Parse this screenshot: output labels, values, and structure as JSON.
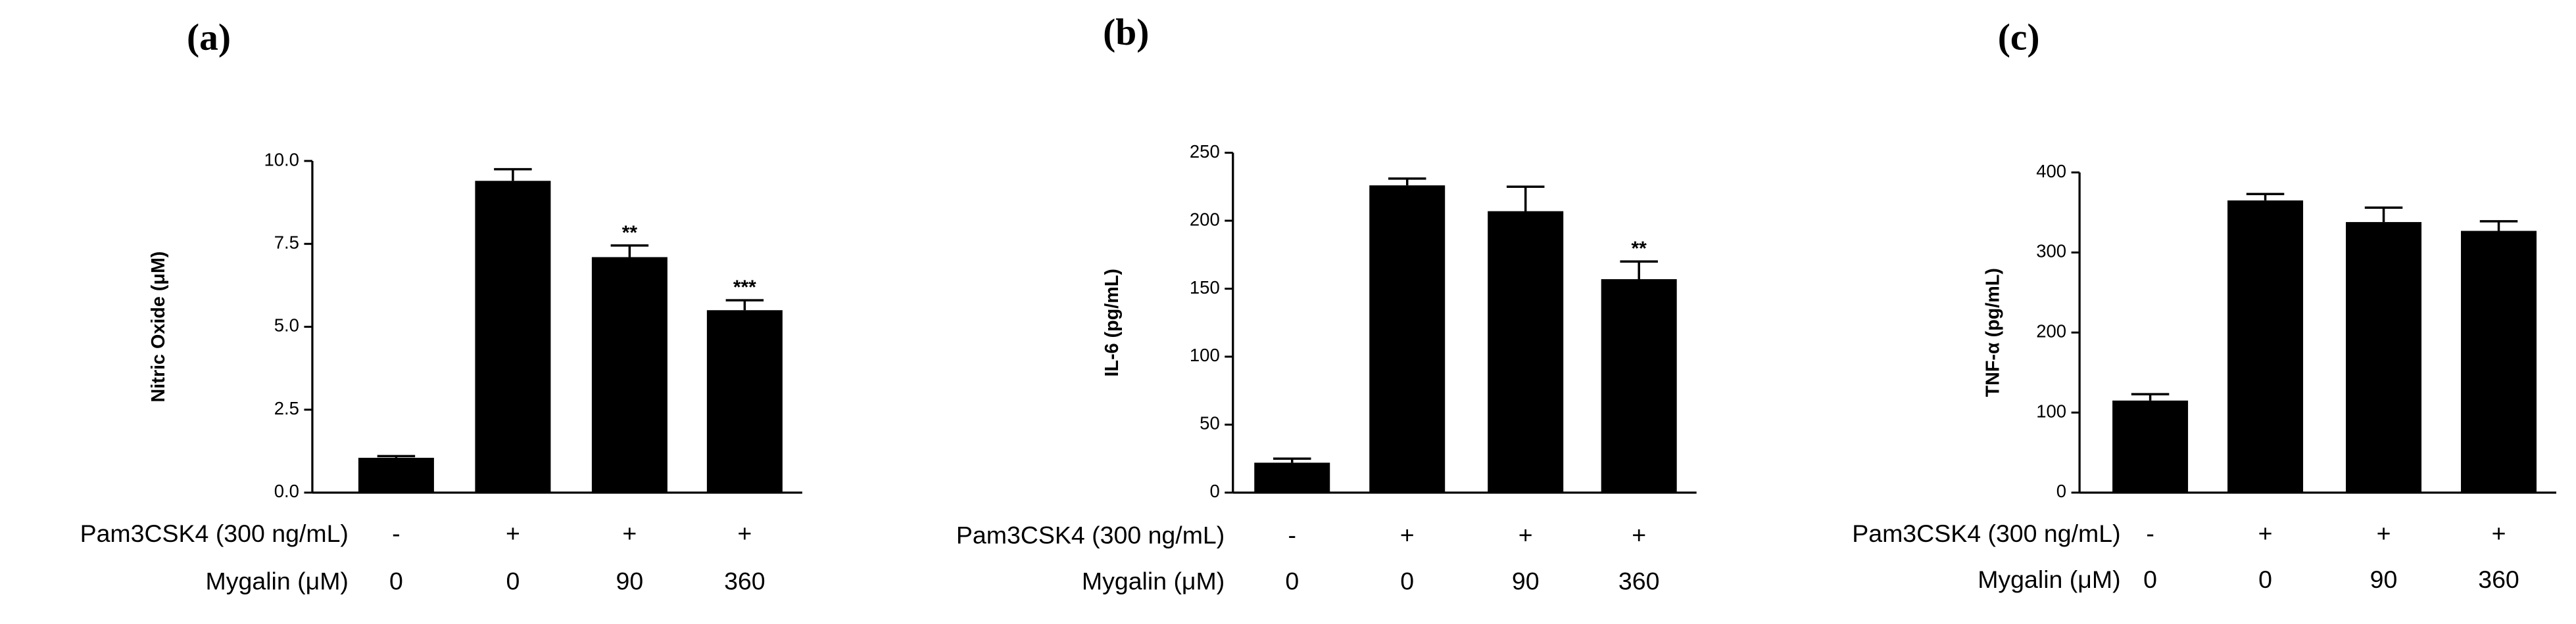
{
  "chart_data": [
    {
      "type": "bar",
      "panel_label": "(a)",
      "y_label": "Nitric Oxide (μM)",
      "color": "#000000",
      "values": [
        1.05,
        9.4,
        7.1,
        5.5
      ],
      "errors": [
        0.05,
        0.35,
        0.35,
        0.3
      ],
      "annotations": [
        null,
        null,
        "**",
        "***"
      ],
      "conditions": [
        {
          "name": "Pam3CSK4 (300 ng/mL)",
          "labels": [
            "-",
            "+",
            "+",
            "+"
          ]
        },
        {
          "name": "Mygalin (μM)",
          "labels": [
            "0",
            "0",
            "90",
            "360"
          ]
        }
      ],
      "ylim": [
        0,
        10
      ],
      "yticks": [
        {
          "value": 0,
          "label": "0.0"
        },
        {
          "value": 2.5,
          "label": "2.5"
        },
        {
          "value": 5,
          "label": "5.0"
        },
        {
          "value": 7.5,
          "label": "7.5"
        },
        {
          "value": 10,
          "label": "10.0"
        }
      ]
    },
    {
      "type": "bar",
      "panel_label": "(b)",
      "y_label": "IL-6 (pg/mL)",
      "color": "#000000",
      "values": [
        22,
        226,
        207,
        157
      ],
      "errors": [
        3,
        5,
        18,
        13
      ],
      "annotations": [
        null,
        null,
        null,
        "**"
      ],
      "conditions": [
        {
          "name": "Pam3CSK4 (300 ng/mL)",
          "labels": [
            "-",
            "+",
            "+",
            "+"
          ]
        },
        {
          "name": "Mygalin (μM)",
          "labels": [
            "0",
            "0",
            "90",
            "360"
          ]
        }
      ],
      "ylim": [
        0,
        250
      ],
      "yticks": [
        0,
        50,
        100,
        150,
        200,
        250
      ]
    },
    {
      "type": "bar",
      "panel_label": "(c)",
      "y_label": "TNF-α (pg/mL)",
      "color": "#000000",
      "values": [
        115,
        365,
        338,
        327
      ],
      "errors": [
        8,
        8,
        18,
        12
      ],
      "annotations": [
        null,
        null,
        null,
        null
      ],
      "conditions": [
        {
          "name": "Pam3CSK4 (300 ng/mL)",
          "labels": [
            "-",
            "+",
            "+",
            "+"
          ]
        },
        {
          "name": "Mygalin (μM)",
          "labels": [
            "0",
            "0",
            "90",
            "360"
          ]
        }
      ],
      "ylim": [
        0,
        400
      ],
      "yticks": [
        0,
        100,
        200,
        300,
        400
      ]
    }
  ]
}
